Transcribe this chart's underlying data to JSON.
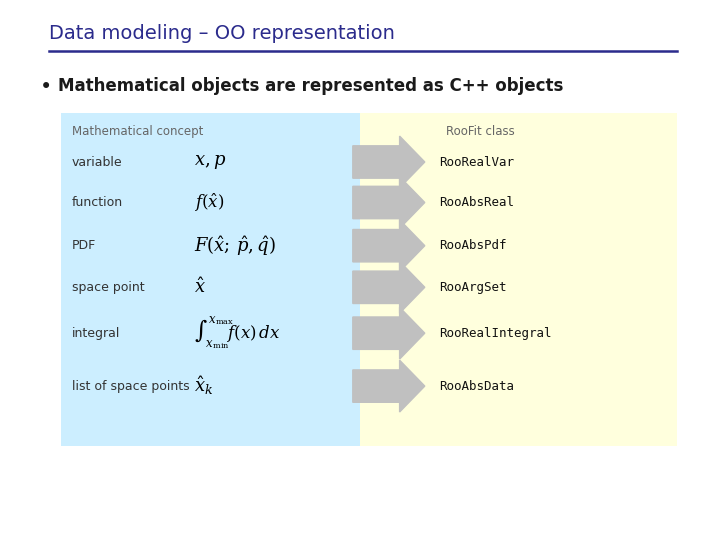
{
  "title": "Data modeling – OO representation",
  "title_color": "#2B2B8C",
  "title_fontsize": 14,
  "bullet_text": "Mathematical objects are represented as C++ objects",
  "bullet_fontsize": 12,
  "bullet_color": "#1a1a1a",
  "left_box_color": "#cceeff",
  "right_box_color": "#ffffdd",
  "left_header": "Mathematical concept",
  "right_header": "RooFit class",
  "header_color": "#666666",
  "rows": [
    {
      "label": "variable",
      "roofit": "RooRealVar"
    },
    {
      "label": "function",
      "roofit": "RooAbsReal"
    },
    {
      "label": "PDF",
      "roofit": "RooAbsPdf"
    },
    {
      "label": "space point",
      "roofit": "RooArgSet"
    },
    {
      "label": "integral",
      "roofit": "RooRealIntegral"
    },
    {
      "label": "list of space points",
      "roofit": "RooAbsData"
    }
  ],
  "arrow_color": "#c0c0c0",
  "label_color": "#333333",
  "roofit_color": "#111111",
  "line_color": "#2B2B8C",
  "fig_width": 7.2,
  "fig_height": 5.4,
  "dpi": 100
}
